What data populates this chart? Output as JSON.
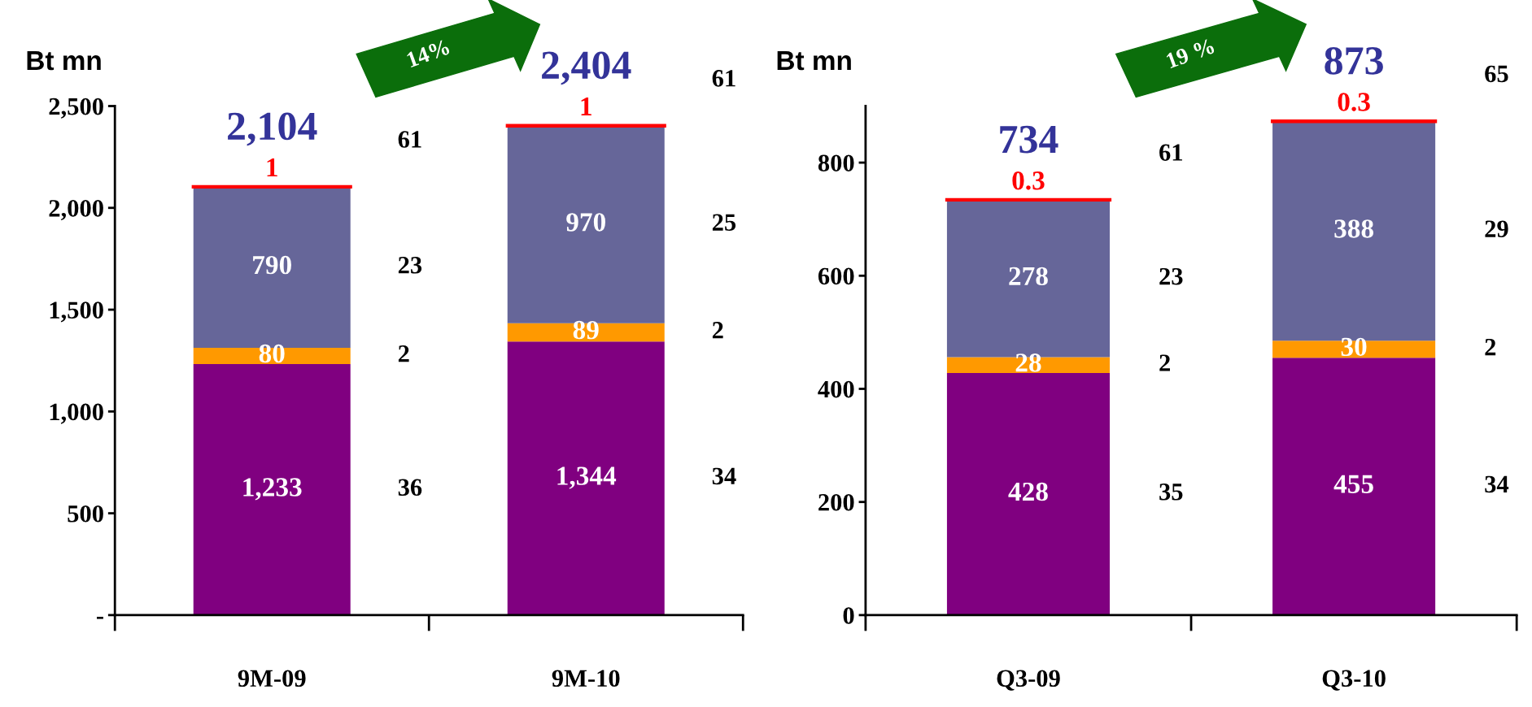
{
  "chart_data": [
    {
      "type": "bar",
      "stacked": true,
      "ylabel": "Bt mn",
      "categories": [
        "9M-09",
        "9M-10"
      ],
      "ylim": [
        0,
        2500
      ],
      "yticks": [
        {
          "value": 0,
          "label": "-"
        },
        {
          "value": 500,
          "label": "500"
        },
        {
          "value": 1000,
          "label": "1,000"
        },
        {
          "value": 1500,
          "label": "1,500"
        },
        {
          "value": 2000,
          "label": "2,000"
        },
        {
          "value": 2500,
          "label": "2,500"
        }
      ],
      "series": [
        {
          "color": "#800080",
          "values": [
            1233,
            1344
          ],
          "value_labels": [
            "1,233",
            "1,344"
          ]
        },
        {
          "color": "#ff9900",
          "values": [
            80,
            89
          ],
          "value_labels": [
            "80",
            "89"
          ]
        },
        {
          "color": "#666699",
          "values": [
            790,
            970
          ],
          "value_labels": [
            "790",
            "970"
          ]
        },
        {
          "color": "#ff0000",
          "values": [
            1,
            1
          ],
          "value_labels": [
            "1",
            "1"
          ]
        }
      ],
      "totals": [
        "2,104",
        "2,404"
      ],
      "annotations": [
        "14%",
        "36",
        "2",
        "23",
        "61",
        "34",
        "2",
        "25",
        "61"
      ],
      "grid": false,
      "legend": false
    },
    {
      "type": "bar",
      "stacked": true,
      "ylabel": "Bt mn",
      "categories": [
        "Q3-09",
        "Q3-10"
      ],
      "ylim": [
        0,
        900
      ],
      "yticks": [
        0,
        200,
        400,
        600,
        800
      ],
      "series": [
        {
          "color": "#800080",
          "values": [
            428,
            455
          ],
          "value_labels": [
            "428",
            "455"
          ]
        },
        {
          "color": "#ff9900",
          "values": [
            28,
            30
          ],
          "value_labels": [
            "28",
            "30"
          ]
        },
        {
          "color": "#666699",
          "values": [
            278,
            388
          ],
          "value_labels": [
            "278",
            "388"
          ]
        },
        {
          "color": "#ff0000",
          "values": [
            0.3,
            0.3
          ],
          "value_labels": [
            "0.3",
            "0.3"
          ]
        }
      ],
      "totals": [
        "734",
        "873"
      ],
      "annotations": [
        "19 %",
        "35",
        "2",
        "23",
        "61",
        "34",
        "2",
        "29",
        "65"
      ],
      "grid": false,
      "legend": false
    }
  ]
}
